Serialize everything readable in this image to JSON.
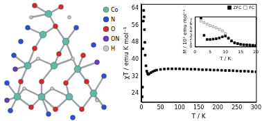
{
  "chart_data": [
    {
      "type": "scatter",
      "x_label": "T / K",
      "y_label": "χT / emu K mol⁻¹",
      "x": [
        2,
        3,
        4,
        5,
        6,
        7,
        8,
        9,
        10,
        12,
        14,
        16,
        18,
        20,
        25,
        30,
        35,
        40,
        50,
        60,
        70,
        80,
        90,
        100,
        110,
        120,
        130,
        140,
        150,
        160,
        170,
        180,
        190,
        200,
        210,
        220,
        230,
        240,
        250,
        260,
        270,
        280,
        290,
        300
      ],
      "values": [
        22.5,
        27,
        45,
        58,
        63,
        60,
        54,
        48,
        42,
        37,
        34.5,
        33.5,
        33,
        33.2,
        33.8,
        34.3,
        34.7,
        35,
        35.3,
        35.5,
        35.6,
        35.6,
        35.6,
        35.6,
        35.5,
        35.5,
        35.4,
        35.4,
        35.3,
        35.2,
        35.2,
        35.1,
        35,
        35,
        34.9,
        34.8,
        34.8,
        34.7,
        34.6,
        34.5,
        34.5,
        34.4,
        34.3,
        34.2
      ],
      "color": "#000000",
      "marker": "square",
      "xlim": [
        0,
        300
      ],
      "xticks": [
        0,
        50,
        100,
        150,
        200,
        250,
        300
      ],
      "ylim": [
        20,
        66
      ],
      "yticks": [
        24,
        32,
        40,
        48,
        56,
        64
      ],
      "grid": false
    },
    {
      "type": "scatter",
      "x_label": "T / K",
      "y_label": "M / 10³ emu mol⁻¹",
      "x": [
        2,
        3,
        4,
        5,
        6,
        7,
        8,
        9,
        10,
        11,
        12,
        13,
        14,
        15,
        16,
        17,
        18,
        19,
        20
      ],
      "series": [
        {
          "name": "ZFC",
          "color": "#000000",
          "marker": "square",
          "values": [
            7.6,
            3.0,
            1.9,
            1.9,
            2.0,
            2.1,
            2.3,
            2.6,
            2.8,
            2.2,
            1.5,
            1.0,
            0.8,
            0.6,
            0.5,
            0.45,
            0.4,
            0.35,
            0.3
          ]
        },
        {
          "name": "FC",
          "color": "#888888",
          "marker": "square_open",
          "values": [
            6.8,
            6.4,
            6.0,
            5.6,
            5.3,
            5.0,
            4.6,
            4.2,
            3.5,
            2.4,
            1.6,
            1.1,
            0.8,
            0.6,
            0.5,
            0.45,
            0.4,
            0.35,
            0.3
          ]
        }
      ],
      "xlim": [
        0,
        20
      ],
      "xticks": [
        0,
        5,
        10,
        15,
        20
      ],
      "ylim": [
        0,
        8
      ],
      "yticks": [
        0,
        1,
        2,
        3,
        4,
        5,
        6,
        7
      ],
      "legend": "top",
      "grid": false
    }
  ],
  "structure": {
    "legend": [
      {
        "label": "Co",
        "color": "#5fb8a8"
      },
      {
        "label": "N",
        "color": "#2b4fd4"
      },
      {
        "label": "O",
        "color": "#d42a2a"
      },
      {
        "label": "ON",
        "color": "#6a3db0"
      },
      {
        "label": "H",
        "color": "#c8c8c8"
      }
    ]
  }
}
